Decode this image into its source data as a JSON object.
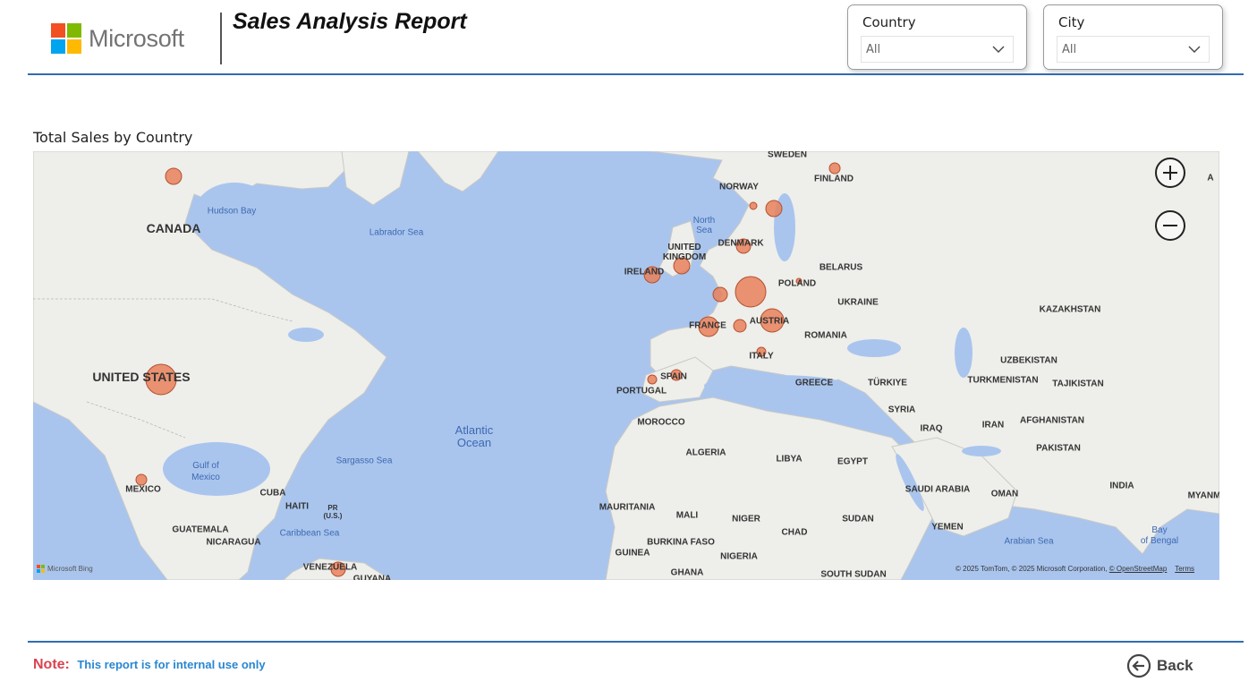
{
  "brand": {
    "name": "Microsoft",
    "colors": [
      "#f25022",
      "#7fba00",
      "#00a4ef",
      "#ffb900"
    ]
  },
  "report": {
    "title": "Sales Analysis Report"
  },
  "filters": {
    "country": {
      "label": "Country",
      "value": "All"
    },
    "city": {
      "label": "City",
      "value": "All"
    }
  },
  "map": {
    "title": "Total Sales by Country",
    "zoom_in_icon": "plus-icon",
    "zoom_out_icon": "minus-icon",
    "provider": "Microsoft Bing",
    "attribution": "© 2025 TomTom, © 2025 Microsoft Corporation,",
    "attribution_link": "© OpenStreetMap",
    "terms": "Terms",
    "bubble_color": "#e8805a",
    "countries": [
      "CANADA",
      "UNITED STATES",
      "MEXICO",
      "SWEDEN",
      "NORWAY",
      "FINLAND",
      "DENMARK",
      "UNITED KINGDOM",
      "IRELAND",
      "FRANCE",
      "AUSTRIA",
      "POLAND",
      "BELARUS",
      "UKRAINE",
      "ROMANIA",
      "ITALY",
      "SPAIN",
      "PORTUGAL",
      "GREECE",
      "TÜRKIYE",
      "SYRIA",
      "IRAQ",
      "IRAN",
      "KAZAKHSTAN",
      "UZBEKISTAN",
      "TURKMENISTAN",
      "TAJIKISTAN",
      "AFGHANISTAN",
      "PAKISTAN",
      "INDIA",
      "MYANM",
      "SAUDI ARABIA",
      "OMAN",
      "YEMEN",
      "EGYPT",
      "LIBYA",
      "ALGERIA",
      "MOROCCO",
      "MAURITANIA",
      "MALI",
      "NIGER",
      "CHAD",
      "SUDAN",
      "SOUTH SUDAN",
      "BURKINA FASO",
      "GUINEA",
      "GHANA",
      "NIGERIA",
      "CUBA",
      "HAITI",
      "PR (U.S.)",
      "GUATEMALA",
      "NICARAGUA",
      "VENEZUELA",
      "GUYANA",
      "A"
    ],
    "water": [
      "Hudson Bay",
      "Labrador Sea",
      "North Sea",
      "Atlantic Ocean",
      "Sargasso Sea",
      "Gulf of Mexico",
      "Caribbean Sea",
      "Arabian Sea",
      "Bay of Bengal"
    ]
  },
  "footer": {
    "note_label": "Note:",
    "note_text": "This report is for internal use only",
    "back_label": "Back",
    "back_icon": "arrow-left-circle-icon"
  }
}
